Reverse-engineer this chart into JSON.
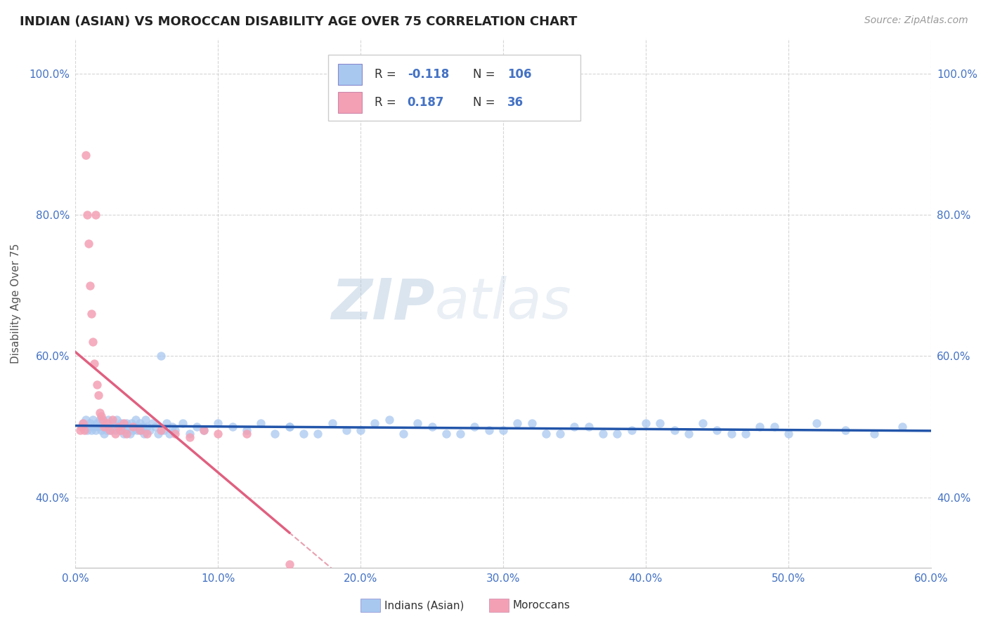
{
  "title": "INDIAN (ASIAN) VS MOROCCAN DISABILITY AGE OVER 75 CORRELATION CHART",
  "source": "Source: ZipAtlas.com",
  "ylabel": "Disability Age Over 75",
  "xlim": [
    0.0,
    0.6
  ],
  "ylim": [
    0.3,
    1.05
  ],
  "xticks": [
    0.0,
    0.1,
    0.2,
    0.3,
    0.4,
    0.5,
    0.6
  ],
  "xticklabels": [
    "0.0%",
    "10.0%",
    "20.0%",
    "30.0%",
    "40.0%",
    "50.0%",
    "60.0%"
  ],
  "ytick_positions": [
    0.4,
    0.6,
    0.8,
    1.0
  ],
  "yticklabels": [
    "40.0%",
    "60.0%",
    "80.0%",
    "100.0%"
  ],
  "legend_R_indian": "-0.118",
  "legend_N_indian": "106",
  "legend_R_moroccan": "0.187",
  "legend_N_moroccan": "36",
  "color_indian": "#a8c8f0",
  "color_moroccan": "#f4a0b4",
  "color_indian_line": "#2255aa",
  "color_moroccan_line": "#e06080",
  "color_moroccan_dashed": "#e8a0b0",
  "watermark_color": "#d0dde8",
  "indian_x": [
    0.005,
    0.007,
    0.008,
    0.009,
    0.01,
    0.011,
    0.012,
    0.013,
    0.014,
    0.015,
    0.016,
    0.017,
    0.018,
    0.019,
    0.02,
    0.02,
    0.021,
    0.022,
    0.023,
    0.024,
    0.025,
    0.026,
    0.027,
    0.028,
    0.029,
    0.03,
    0.031,
    0.032,
    0.033,
    0.034,
    0.035,
    0.036,
    0.037,
    0.038,
    0.039,
    0.04,
    0.041,
    0.042,
    0.043,
    0.044,
    0.045,
    0.046,
    0.047,
    0.048,
    0.049,
    0.05,
    0.052,
    0.054,
    0.056,
    0.058,
    0.06,
    0.062,
    0.064,
    0.066,
    0.068,
    0.07,
    0.075,
    0.08,
    0.085,
    0.09,
    0.1,
    0.11,
    0.12,
    0.13,
    0.14,
    0.15,
    0.16,
    0.18,
    0.2,
    0.22,
    0.24,
    0.26,
    0.28,
    0.3,
    0.32,
    0.34,
    0.36,
    0.38,
    0.4,
    0.42,
    0.44,
    0.46,
    0.48,
    0.5,
    0.52,
    0.54,
    0.56,
    0.58,
    0.15,
    0.17,
    0.19,
    0.21,
    0.23,
    0.25,
    0.27,
    0.29,
    0.31,
    0.33,
    0.35,
    0.37,
    0.39,
    0.41,
    0.43,
    0.45,
    0.47,
    0.49
  ],
  "indian_y": [
    0.505,
    0.51,
    0.495,
    0.5,
    0.505,
    0.495,
    0.51,
    0.5,
    0.495,
    0.505,
    0.5,
    0.51,
    0.495,
    0.5,
    0.505,
    0.49,
    0.5,
    0.495,
    0.51,
    0.5,
    0.495,
    0.505,
    0.5,
    0.495,
    0.51,
    0.5,
    0.495,
    0.505,
    0.5,
    0.49,
    0.495,
    0.505,
    0.5,
    0.49,
    0.505,
    0.495,
    0.5,
    0.51,
    0.495,
    0.5,
    0.505,
    0.495,
    0.5,
    0.49,
    0.51,
    0.5,
    0.495,
    0.505,
    0.5,
    0.49,
    0.6,
    0.495,
    0.505,
    0.49,
    0.5,
    0.495,
    0.505,
    0.49,
    0.5,
    0.495,
    0.505,
    0.5,
    0.495,
    0.505,
    0.49,
    0.5,
    0.49,
    0.505,
    0.495,
    0.51,
    0.505,
    0.49,
    0.5,
    0.495,
    0.505,
    0.49,
    0.5,
    0.49,
    0.505,
    0.495,
    0.505,
    0.49,
    0.5,
    0.49,
    0.505,
    0.495,
    0.49,
    0.5,
    0.5,
    0.49,
    0.495,
    0.505,
    0.49,
    0.5,
    0.49,
    0.495,
    0.505,
    0.49,
    0.5,
    0.49,
    0.495,
    0.505,
    0.49,
    0.495,
    0.49,
    0.5
  ],
  "moroccan_x": [
    0.003,
    0.004,
    0.005,
    0.006,
    0.007,
    0.008,
    0.009,
    0.01,
    0.011,
    0.012,
    0.013,
    0.014,
    0.015,
    0.016,
    0.017,
    0.018,
    0.019,
    0.02,
    0.022,
    0.024,
    0.026,
    0.028,
    0.03,
    0.032,
    0.034,
    0.036,
    0.04,
    0.045,
    0.05,
    0.06,
    0.07,
    0.08,
    0.09,
    0.1,
    0.12,
    0.15
  ],
  "moroccan_y": [
    0.495,
    0.5,
    0.505,
    0.495,
    0.885,
    0.8,
    0.76,
    0.7,
    0.66,
    0.62,
    0.59,
    0.8,
    0.56,
    0.545,
    0.52,
    0.515,
    0.51,
    0.5,
    0.505,
    0.495,
    0.51,
    0.49,
    0.5,
    0.495,
    0.505,
    0.49,
    0.5,
    0.495,
    0.49,
    0.495,
    0.49,
    0.485,
    0.495,
    0.49,
    0.49,
    0.305
  ]
}
